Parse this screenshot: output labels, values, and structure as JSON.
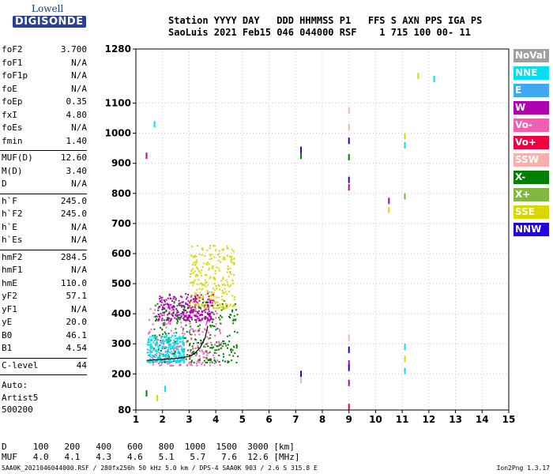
{
  "logo": {
    "line1": "Lowell",
    "line2": "DIGISONDE"
  },
  "header": {
    "labels": [
      "Station",
      "YYYY",
      "DAY",
      "DDD",
      "HHMMSS",
      "P1",
      "FFS",
      "S",
      "AXN",
      "PPS",
      "IGA",
      "PS"
    ],
    "values": [
      "SaoLuis",
      "2021",
      "Feb15",
      "046",
      "044000",
      "RSF",
      "1",
      "715",
      "100",
      "00-",
      "11"
    ],
    "line1": "Station YYYY DAY   DDD HHMMSS P1   FFS S AXN PPS IGA PS",
    "line2": "SaoLuis 2021 Feb15 046 044000 RSF    1 715 100 00- 11"
  },
  "params": [
    {
      "k": "foF2",
      "v": "3.700"
    },
    {
      "k": "foF1",
      "v": "N/A"
    },
    {
      "k": "foF1p",
      "v": "N/A"
    },
    {
      "k": "foE",
      "v": "N/A"
    },
    {
      "k": "foEp",
      "v": "0.35"
    },
    {
      "k": "fxI",
      "v": "4.80"
    },
    {
      "k": "foEs",
      "v": "N/A"
    },
    {
      "k": "fmin",
      "v": "1.40"
    },
    {
      "k": "MUF(D)",
      "v": "12.60"
    },
    {
      "k": "M(D)",
      "v": "3.40"
    },
    {
      "k": "D",
      "v": "N/A"
    },
    {
      "k": "h`F",
      "v": "245.0"
    },
    {
      "k": "h`F2",
      "v": "245.0"
    },
    {
      "k": "h`E",
      "v": "N/A"
    },
    {
      "k": "h`Es",
      "v": "N/A"
    },
    {
      "k": "hmF2",
      "v": "284.5"
    },
    {
      "k": "hmF1",
      "v": "N/A"
    },
    {
      "k": "hmE",
      "v": "110.0"
    },
    {
      "k": "yF2",
      "v": "57.1"
    },
    {
      "k": "yF1",
      "v": "N/A"
    },
    {
      "k": "yE",
      "v": "20.0"
    },
    {
      "k": "B0",
      "v": "46.1"
    },
    {
      "k": "B1",
      "v": "4.54"
    },
    {
      "k": "C-level",
      "v": "44"
    }
  ],
  "auto": [
    "Auto:",
    "Artist5",
    "500200"
  ],
  "legend": [
    {
      "label": "NoVal",
      "color": "#a0a0a0"
    },
    {
      "label": "NNE",
      "color": "#00e0f0"
    },
    {
      "label": "E",
      "color": "#40a8f0"
    },
    {
      "label": "W",
      "color": "#b000b0"
    },
    {
      "label": "Vo-",
      "color": "#f060b0"
    },
    {
      "label": "Vo+",
      "color": "#f00040"
    },
    {
      "label": "SSW",
      "color": "#f8b0a8"
    },
    {
      "label": "X-",
      "color": "#008000"
    },
    {
      "label": "X+",
      "color": "#80b840"
    },
    {
      "label": "SSE",
      "color": "#d8d800"
    },
    {
      "label": "NNW",
      "color": "#2000e0"
    }
  ],
  "distance_muf": {
    "d_label": "D",
    "d_values": [
      "100",
      "200",
      "400",
      "600",
      "800",
      "1000",
      "1500",
      "3000"
    ],
    "d_unit": "[km]",
    "m_label": "MUF",
    "m_values": [
      "4.0",
      "4.1",
      "4.3",
      "4.6",
      "5.1",
      "5.7",
      "7.6",
      "12.6"
    ],
    "m_unit": "[MHz]"
  },
  "footer": "SAA0K_2021046044000.RSF / 280fx256h 50 kHz 5.0 km / DPS-4 SAA0K 903 / 2.6 S 315.8 E",
  "version": "Ion2Png 1.3.17",
  "chart_data": {
    "type": "scatter",
    "xlabel": "",
    "ylabel": "",
    "xlim": [
      1,
      15
    ],
    "ylim": [
      80,
      1280
    ],
    "x_ticks": [
      1,
      2,
      3,
      4,
      5,
      6,
      7,
      8,
      9,
      10,
      11,
      12,
      13,
      14,
      15
    ],
    "y_ticks": [
      80,
      200,
      300,
      400,
      500,
      600,
      700,
      800,
      900,
      1000,
      1100,
      1280
    ],
    "grid": true,
    "ionogram_clusters": [
      {
        "direction": "Vo-",
        "f_range": [
          1.4,
          4.2
        ],
        "h_range": [
          230,
          420
        ]
      },
      {
        "direction": "W",
        "f_range": [
          1.8,
          3.9
        ],
        "h_range": [
          380,
          470
        ]
      },
      {
        "direction": "X-",
        "f_range": [
          1.6,
          4.8
        ],
        "h_range": [
          240,
          450
        ]
      },
      {
        "direction": "SSE",
        "f_range": [
          3.0,
          4.7
        ],
        "h_range": [
          420,
          630
        ]
      },
      {
        "direction": "NNE",
        "f_range": [
          1.4,
          2.8
        ],
        "h_range": [
          240,
          330
        ]
      }
    ],
    "scatter_points": [
      {
        "x": 7.2,
        "y": 945,
        "dir": "NNW"
      },
      {
        "x": 7.2,
        "y": 925,
        "dir": "X-"
      },
      {
        "x": 7.2,
        "y": 200,
        "dir": "NNW"
      },
      {
        "x": 7.2,
        "y": 180,
        "dir": "SSW"
      },
      {
        "x": 9.0,
        "y": 1075,
        "dir": "SSW"
      },
      {
        "x": 9.0,
        "y": 1020,
        "dir": "SSW"
      },
      {
        "x": 9.0,
        "y": 975,
        "dir": "NNW"
      },
      {
        "x": 9.0,
        "y": 920,
        "dir": "X-"
      },
      {
        "x": 9.0,
        "y": 845,
        "dir": "NNW"
      },
      {
        "x": 9.0,
        "y": 820,
        "dir": "W"
      },
      {
        "x": 9.0,
        "y": 320,
        "dir": "SSW"
      },
      {
        "x": 9.0,
        "y": 280,
        "dir": "NNW"
      },
      {
        "x": 9.0,
        "y": 235,
        "dir": "W"
      },
      {
        "x": 9.0,
        "y": 220,
        "dir": "NNW"
      },
      {
        "x": 9.0,
        "y": 170,
        "dir": "W"
      },
      {
        "x": 9.0,
        "y": 90,
        "dir": "Vo+"
      },
      {
        "x": 10.5,
        "y": 775,
        "dir": "W"
      },
      {
        "x": 10.5,
        "y": 745,
        "dir": "SSE"
      },
      {
        "x": 11.1,
        "y": 990,
        "dir": "SSE"
      },
      {
        "x": 11.1,
        "y": 960,
        "dir": "NNE"
      },
      {
        "x": 11.1,
        "y": 790,
        "dir": "X+"
      },
      {
        "x": 11.1,
        "y": 290,
        "dir": "NNE"
      },
      {
        "x": 11.1,
        "y": 250,
        "dir": "SSE"
      },
      {
        "x": 11.1,
        "y": 210,
        "dir": "NNE"
      },
      {
        "x": 11.6,
        "y": 1190,
        "dir": "SSE"
      },
      {
        "x": 12.2,
        "y": 1180,
        "dir": "NNE"
      },
      {
        "x": 1.4,
        "y": 925,
        "dir": "W"
      },
      {
        "x": 1.7,
        "y": 1030,
        "dir": "NNE"
      },
      {
        "x": 1.4,
        "y": 135,
        "dir": "X-"
      },
      {
        "x": 2.1,
        "y": 150,
        "dir": "NNE"
      },
      {
        "x": 1.8,
        "y": 120,
        "dir": "SSE"
      }
    ],
    "profile": {
      "f": [
        1.4,
        2.0,
        2.6,
        3.0,
        3.2,
        3.4,
        3.6,
        3.7
      ],
      "h": [
        245,
        248,
        252,
        258,
        268,
        285,
        320,
        360
      ]
    }
  }
}
